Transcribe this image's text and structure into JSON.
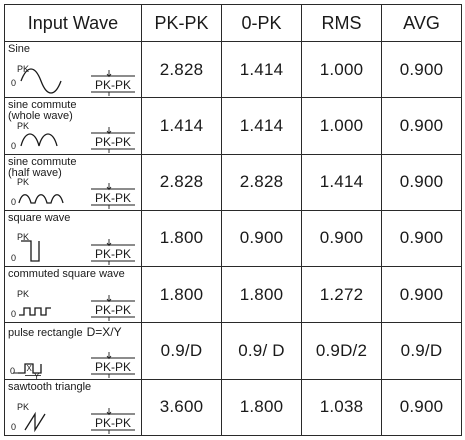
{
  "headers": {
    "input_wave": "Input Wave",
    "pk_pk": "PK-PK",
    "zero_pk": "0-PK",
    "rms": "RMS",
    "avg": "AVG"
  },
  "graph_labels": {
    "pk": "PK",
    "zero": "0",
    "pk_pk": "PK-PK",
    "x": "X",
    "y": "Y"
  },
  "rows": [
    {
      "name": "Sine",
      "sub": "",
      "icon": "sine-wave-icon",
      "pk_pk": "2.828",
      "zero_pk": "1.414",
      "rms": "1.000",
      "avg": "0.900"
    },
    {
      "name": "sine commute",
      "sub": "(whole wave)",
      "icon": "full-wave-rectified-sine-icon",
      "pk_pk": "1.414",
      "zero_pk": "1.414",
      "rms": "1.000",
      "avg": "0.900"
    },
    {
      "name": "sine commute",
      "sub": "(half wave)",
      "icon": "half-wave-rectified-sine-icon",
      "pk_pk": "2.828",
      "zero_pk": "2.828",
      "rms": "1.414",
      "avg": "0.900"
    },
    {
      "name": "square wave",
      "sub": "",
      "icon": "square-wave-icon",
      "pk_pk": "1.800",
      "zero_pk": "0.900",
      "rms": "0.900",
      "avg": "0.900"
    },
    {
      "name": "commuted square wave",
      "sub": "",
      "icon": "commuted-square-wave-icon",
      "pk_pk": "1.800",
      "zero_pk": "1.800",
      "rms": "1.272",
      "avg": "0.900"
    },
    {
      "name": "pulse rectangle",
      "sub": "D=X/Y",
      "icon": "pulse-rectangle-icon",
      "pk_pk": "0.9/D",
      "zero_pk": "0.9/ D",
      "rms": "0.9D/2",
      "avg": "0.9/D"
    },
    {
      "name": "sawtooth triangle",
      "sub": "",
      "icon": "sawtooth-triangle-icon",
      "pk_pk": "3.600",
      "zero_pk": "1.800",
      "rms": "1.038",
      "avg": "0.900"
    }
  ]
}
